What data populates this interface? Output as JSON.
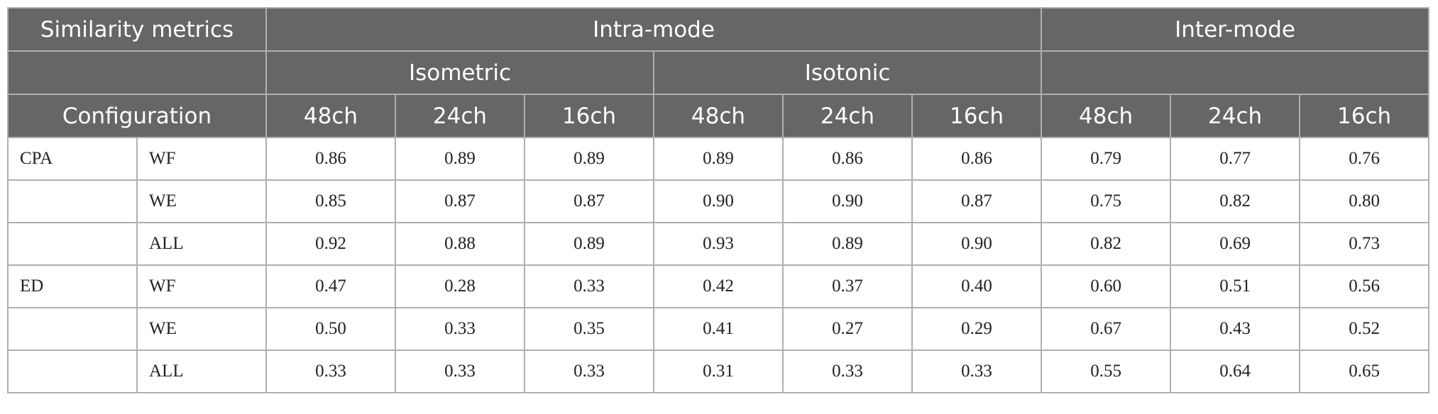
{
  "header": {
    "similarity_metrics": "Similarity metrics",
    "intra_mode": "Intra-mode",
    "inter_mode": "Inter-mode",
    "isometric": "Isometric",
    "isotonic": "Isotonic",
    "configuration": "Configuration",
    "channels": [
      "48ch",
      "24ch",
      "16ch",
      "48ch",
      "24ch",
      "16ch",
      "48ch",
      "24ch",
      "16ch"
    ]
  },
  "table": {
    "rows": [
      {
        "group": "CPA",
        "config": "WF",
        "values": [
          "0.86",
          "0.89",
          "0.89",
          "0.89",
          "0.86",
          "0.86",
          "0.79",
          "0.77",
          "0.76"
        ]
      },
      {
        "config": "WE",
        "values": [
          "0.85",
          "0.87",
          "0.87",
          "0.90",
          "0.90",
          "0.87",
          "0.75",
          "0.82",
          "0.80"
        ]
      },
      {
        "config": "ALL",
        "values": [
          "0.92",
          "0.88",
          "0.89",
          "0.93",
          "0.89",
          "0.90",
          "0.82",
          "0.69",
          "0.73"
        ]
      },
      {
        "group": "ED",
        "config": "WF",
        "values": [
          "0.47",
          "0.28",
          "0.33",
          "0.42",
          "0.37",
          "0.40",
          "0.60",
          "0.51",
          "0.56"
        ]
      },
      {
        "config": "WE",
        "values": [
          "0.50",
          "0.33",
          "0.35",
          "0.41",
          "0.27",
          "0.29",
          "0.67",
          "0.43",
          "0.52"
        ]
      },
      {
        "config": "ALL",
        "values": [
          "0.33",
          "0.33",
          "0.33",
          "0.31",
          "0.33",
          "0.33",
          "0.55",
          "0.64",
          "0.65"
        ]
      }
    ]
  }
}
